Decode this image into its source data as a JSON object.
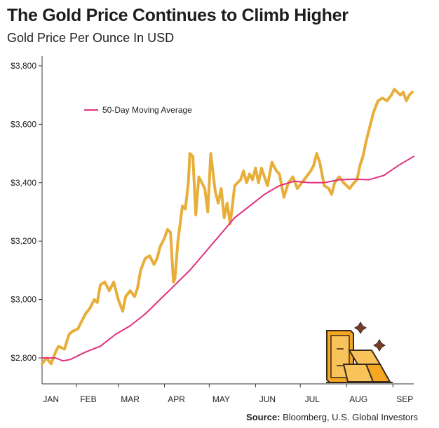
{
  "header": {
    "title": "The Gold Price Continues to Climb Higher",
    "subtitle": "Gold Price Per Ounce In USD"
  },
  "footer": {
    "source_label": "Source:",
    "source_text": "Bloomberg, U.S. Global Investors"
  },
  "colors": {
    "gold_line": "#E8AE3A",
    "moving_average": "#E0307F",
    "axis": "#333333",
    "text": "#222222"
  },
  "chart_data": {
    "type": "line",
    "title": "The Gold Price Continues to Climb Higher",
    "subtitle": "Gold Price Per Ounce In USD",
    "xlabel": "",
    "ylabel": "",
    "x_range_days": [
      1,
      250
    ],
    "ylim": [
      2750,
      3850
    ],
    "y_ticks": [
      2800,
      3000,
      3200,
      3400,
      3600,
      3800
    ],
    "y_tick_labels": [
      "$2,800",
      "$3,000",
      "$3,200",
      "$3,400",
      "$3,600",
      "$3,800"
    ],
    "x_tick_labels": [
      "JAN",
      "FEB",
      "MAR",
      "APR",
      "MAY",
      "JUN",
      "JUL",
      "AUG",
      "SEP"
    ],
    "x_tick_days": [
      7,
      32,
      60,
      91,
      121,
      152,
      182,
      213,
      244
    ],
    "grid": false,
    "legend_position": "top-left",
    "series": [
      {
        "name": "",
        "color": "#E8AE3A",
        "x": [
          1,
          4,
          7,
          10,
          12,
          16,
          19,
          21,
          25,
          27,
          30,
          33,
          36,
          38,
          40,
          43,
          46,
          49,
          52,
          55,
          57,
          60,
          63,
          65,
          67,
          70,
          73,
          76,
          78,
          80,
          83,
          85,
          87,
          89,
          90,
          92,
          95,
          97,
          99,
          100,
          102,
          104,
          106,
          108,
          110,
          112,
          114,
          117,
          119,
          121,
          123,
          125,
          127,
          128,
          130,
          132,
          134,
          136,
          138,
          140,
          142,
          144,
          146,
          148,
          150,
          152,
          155,
          158,
          160,
          163,
          166,
          169,
          172,
          175,
          178,
          181,
          183,
          185,
          187,
          190,
          193,
          195,
          197,
          200,
          203,
          205,
          207,
          210,
          212,
          214,
          216,
          218,
          220,
          223,
          226,
          229,
          232,
          235,
          237,
          239,
          241,
          243,
          245,
          247,
          249
        ],
        "values": [
          2780,
          2800,
          2780,
          2820,
          2840,
          2830,
          2880,
          2890,
          2900,
          2920,
          2950,
          2970,
          3000,
          2990,
          3050,
          3060,
          3030,
          3060,
          3000,
          2960,
          3010,
          3030,
          3010,
          3040,
          3100,
          3140,
          3150,
          3120,
          3140,
          3180,
          3210,
          3240,
          3230,
          3060,
          3070,
          3200,
          3320,
          3310,
          3400,
          3500,
          3490,
          3290,
          3420,
          3400,
          3380,
          3300,
          3500,
          3370,
          3330,
          3380,
          3280,
          3330,
          3260,
          3300,
          3390,
          3400,
          3410,
          3440,
          3400,
          3430,
          3410,
          3450,
          3400,
          3450,
          3420,
          3390,
          3470,
          3440,
          3430,
          3350,
          3400,
          3420,
          3380,
          3400,
          3420,
          3440,
          3460,
          3500,
          3470,
          3390,
          3380,
          3360,
          3400,
          3420,
          3400,
          3390,
          3380,
          3400,
          3410,
          3460,
          3490,
          3540,
          3580,
          3640,
          3680,
          3690,
          3680,
          3700,
          3720,
          3710,
          3700,
          3710,
          3680,
          3700,
          3710
        ]
      },
      {
        "name": "50-Day Moving Average",
        "color": "#E0307F",
        "x": [
          1,
          10,
          15,
          20,
          30,
          40,
          50,
          60,
          70,
          80,
          90,
          100,
          110,
          120,
          130,
          140,
          150,
          160,
          170,
          180,
          190,
          200,
          210,
          220,
          230,
          240,
          250
        ],
        "values": [
          2800,
          2800,
          2790,
          2795,
          2820,
          2840,
          2880,
          2910,
          2950,
          3000,
          3050,
          3100,
          3160,
          3220,
          3280,
          3320,
          3360,
          3390,
          3405,
          3400,
          3400,
          3410,
          3412,
          3410,
          3425,
          3460,
          3490
        ]
      }
    ]
  }
}
